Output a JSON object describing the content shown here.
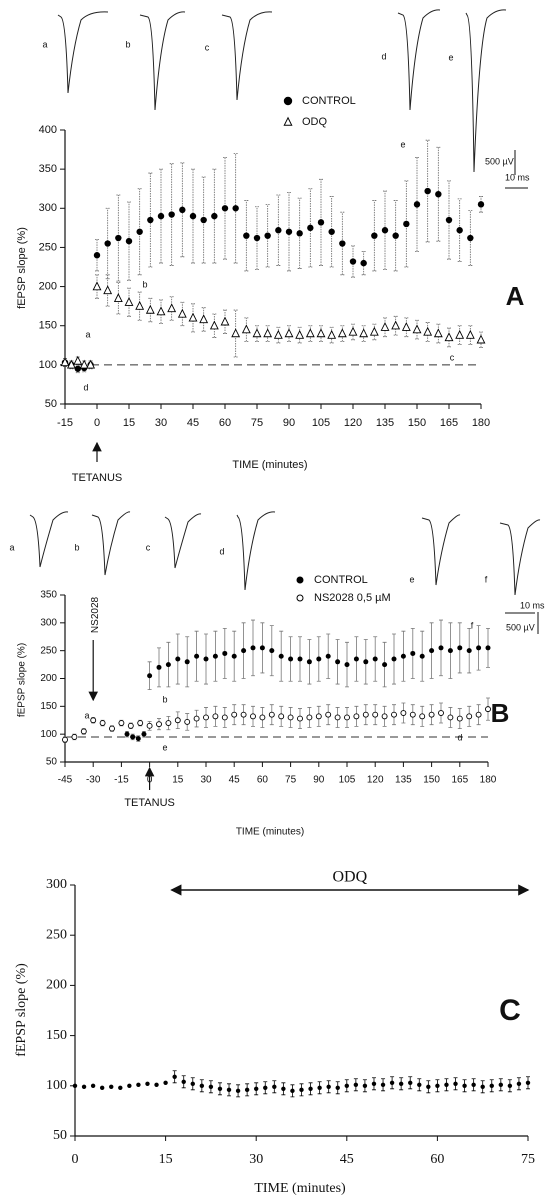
{
  "chart_data": [
    {
      "type": "line",
      "panel_label": "A",
      "xlabel": "TIME (minutes)",
      "ylabel": "fEPSP slope (%)",
      "xlim": [
        -15,
        180
      ],
      "ylim": [
        50,
        400
      ],
      "xticks": [
        -15,
        0,
        15,
        30,
        45,
        60,
        75,
        90,
        105,
        120,
        135,
        150,
        165,
        180
      ],
      "yticks": [
        50,
        100,
        150,
        200,
        250,
        300,
        350,
        400
      ],
      "reference_line": 100,
      "series": [
        {
          "name": "CONTROL",
          "color": "#000000",
          "marker": "circle",
          "x": [
            -15,
            -12,
            -9,
            -6,
            -3,
            0,
            5,
            10,
            15,
            20,
            25,
            30,
            35,
            40,
            45,
            50,
            55,
            60,
            65,
            70,
            75,
            80,
            85,
            90,
            95,
            100,
            105,
            110,
            115,
            120,
            125,
            130,
            135,
            140,
            145,
            150,
            155,
            160,
            165,
            170,
            175,
            180
          ],
          "values": [
            103,
            100,
            95,
            96,
            100,
            240,
            255,
            262,
            258,
            270,
            285,
            290,
            292,
            298,
            290,
            285,
            290,
            300,
            300,
            265,
            262,
            265,
            272,
            270,
            268,
            275,
            282,
            270,
            255,
            232,
            230,
            265,
            272,
            265,
            280,
            305,
            322,
            318,
            285,
            272,
            262,
            305
          ],
          "errors": [
            5,
            5,
            5,
            5,
            5,
            20,
            45,
            55,
            50,
            55,
            60,
            60,
            65,
            60,
            60,
            55,
            60,
            65,
            70,
            45,
            40,
            40,
            45,
            50,
            45,
            50,
            55,
            45,
            40,
            20,
            15,
            45,
            50,
            45,
            55,
            60,
            65,
            60,
            50,
            40,
            35,
            10
          ]
        },
        {
          "name": "ODQ",
          "color": "#000000",
          "marker": "triangle",
          "x": [
            -15,
            -12,
            -9,
            -6,
            -3,
            0,
            5,
            10,
            15,
            20,
            25,
            30,
            35,
            40,
            45,
            50,
            55,
            60,
            65,
            70,
            75,
            80,
            85,
            90,
            95,
            100,
            105,
            110,
            115,
            120,
            125,
            130,
            135,
            140,
            145,
            150,
            155,
            160,
            165,
            170,
            175,
            180
          ],
          "values": [
            103,
            100,
            105,
            100,
            100,
            200,
            195,
            185,
            180,
            175,
            170,
            168,
            172,
            165,
            160,
            158,
            150,
            155,
            140,
            145,
            140,
            140,
            138,
            140,
            138,
            140,
            140,
            138,
            140,
            142,
            140,
            142,
            148,
            150,
            148,
            145,
            142,
            140,
            135,
            138,
            138,
            132
          ],
          "errors": [
            5,
            5,
            5,
            5,
            5,
            15,
            20,
            20,
            18,
            18,
            15,
            15,
            15,
            15,
            18,
            15,
            15,
            15,
            30,
            15,
            10,
            10,
            10,
            10,
            10,
            10,
            10,
            10,
            10,
            10,
            10,
            10,
            12,
            12,
            12,
            12,
            12,
            12,
            12,
            12,
            12,
            10
          ]
        }
      ],
      "point_labels": [
        "a",
        "b",
        "c",
        "d",
        "e"
      ],
      "trace_labels": [
        "a",
        "b",
        "c",
        "d",
        "e"
      ],
      "scale_labels": [
        "500 µV",
        "10 ms"
      ],
      "arrows": [
        {
          "label": "TETANUS",
          "x": 0
        }
      ]
    },
    {
      "type": "line",
      "panel_label": "B",
      "xlabel": "TIME (minutes)",
      "ylabel": "fEPSP slope (%)",
      "xlim": [
        -45,
        180
      ],
      "ylim": [
        50,
        350
      ],
      "xticks": [
        -45,
        -30,
        -15,
        0,
        15,
        30,
        45,
        60,
        75,
        90,
        105,
        120,
        135,
        150,
        165,
        180
      ],
      "yticks": [
        50,
        100,
        150,
        200,
        250,
        300,
        350
      ],
      "reference_line": 95,
      "series": [
        {
          "name": "CONTROL",
          "color": "#000000",
          "marker": "circle",
          "x": [
            -12,
            -9,
            -6,
            -3,
            0,
            5,
            10,
            15,
            20,
            25,
            30,
            35,
            40,
            45,
            50,
            55,
            60,
            65,
            70,
            75,
            80,
            85,
            90,
            95,
            100,
            105,
            110,
            115,
            120,
            125,
            130,
            135,
            140,
            145,
            150,
            155,
            160,
            165,
            170,
            175,
            180
          ],
          "values": [
            100,
            95,
            92,
            100,
            205,
            220,
            225,
            235,
            230,
            240,
            235,
            240,
            245,
            240,
            250,
            255,
            255,
            250,
            240,
            235,
            235,
            230,
            235,
            240,
            230,
            225,
            235,
            230,
            235,
            225,
            235,
            240,
            245,
            240,
            250,
            255,
            250,
            255,
            250,
            255,
            255
          ],
          "errors": [
            5,
            5,
            5,
            5,
            25,
            35,
            40,
            45,
            45,
            45,
            45,
            45,
            45,
            45,
            50,
            50,
            45,
            45,
            45,
            40,
            40,
            40,
            40,
            40,
            40,
            40,
            40,
            40,
            40,
            40,
            45,
            45,
            45,
            45,
            50,
            50,
            50,
            45,
            40,
            40,
            35
          ]
        },
        {
          "name": "NS2028 0,5 µM",
          "color": "#000000",
          "marker": "open-circle",
          "x": [
            -45,
            -40,
            -35,
            -30,
            -25,
            -20,
            -15,
            -10,
            -5,
            0,
            5,
            10,
            15,
            20,
            25,
            30,
            35,
            40,
            45,
            50,
            55,
            60,
            65,
            70,
            75,
            80,
            85,
            90,
            95,
            100,
            105,
            110,
            115,
            120,
            125,
            130,
            135,
            140,
            145,
            150,
            155,
            160,
            165,
            170,
            175,
            180
          ],
          "values": [
            90,
            95,
            105,
            125,
            120,
            110,
            120,
            115,
            120,
            115,
            118,
            120,
            125,
            122,
            128,
            130,
            132,
            130,
            135,
            135,
            132,
            130,
            135,
            132,
            130,
            128,
            130,
            132,
            135,
            130,
            130,
            132,
            135,
            135,
            132,
            135,
            138,
            135,
            132,
            135,
            138,
            130,
            128,
            132,
            135,
            145
          ],
          "errors": [
            5,
            5,
            5,
            5,
            5,
            5,
            5,
            5,
            5,
            8,
            10,
            12,
            15,
            15,
            15,
            18,
            18,
            18,
            18,
            18,
            18,
            18,
            18,
            18,
            18,
            18,
            18,
            18,
            18,
            18,
            18,
            18,
            18,
            18,
            18,
            18,
            18,
            18,
            18,
            18,
            18,
            18,
            18,
            18,
            18,
            20
          ]
        }
      ],
      "point_labels": [
        "a",
        "b",
        "e",
        "d",
        "f"
      ],
      "trace_labels": [
        "a",
        "b",
        "c",
        "d",
        "e",
        "f"
      ],
      "scale_labels": [
        "10 ms",
        "500 µV"
      ],
      "arrows": [
        {
          "label": "NS2028",
          "x": -30
        },
        {
          "label": "TETANUS",
          "x": 0
        }
      ]
    },
    {
      "type": "line",
      "panel_label": "C",
      "xlabel": "TIME (minutes)",
      "ylabel": "fEPSP slope (%)",
      "xlim": [
        0,
        75
      ],
      "ylim": [
        50,
        300
      ],
      "xticks": [
        0,
        15,
        30,
        45,
        60,
        75
      ],
      "yticks": [
        50,
        100,
        150,
        200,
        250,
        300
      ],
      "series": [
        {
          "color": "#000000",
          "marker": "circle",
          "x": [
            0,
            1.5,
            3,
            4.5,
            6,
            7.5,
            9,
            10.5,
            12,
            13.5,
            15,
            16.5,
            18,
            19.5,
            21,
            22.5,
            24,
            25.5,
            27,
            28.5,
            30,
            31.5,
            33,
            34.5,
            36,
            37.5,
            39,
            40.5,
            42,
            43.5,
            45,
            46.5,
            48,
            49.5,
            51,
            52.5,
            54,
            55.5,
            57,
            58.5,
            60,
            61.5,
            63,
            64.5,
            66,
            67.5,
            69,
            70.5,
            72,
            73.5,
            75
          ],
          "values": [
            100,
            99,
            100,
            98,
            99,
            98,
            100,
            101,
            102,
            101,
            103,
            109,
            104,
            102,
            100,
            99,
            97,
            96,
            95,
            96,
            97,
            98,
            99,
            97,
            95,
            96,
            97,
            98,
            99,
            98,
            100,
            101,
            100,
            102,
            101,
            103,
            102,
            103,
            101,
            99,
            100,
            101,
            102,
            100,
            101,
            99,
            100,
            101,
            100,
            102,
            103
          ],
          "errors": [
            null,
            null,
            null,
            null,
            null,
            null,
            null,
            null,
            null,
            null,
            null,
            6,
            6,
            6,
            6,
            6,
            6,
            6,
            6,
            6,
            6,
            6,
            6,
            6,
            6,
            6,
            6,
            6,
            6,
            6,
            6,
            6,
            6,
            6,
            6,
            6,
            6,
            6,
            6,
            6,
            6,
            6,
            6,
            6,
            6,
            6,
            6,
            6,
            6,
            6,
            6
          ]
        }
      ],
      "arrows": [
        {
          "label": "ODQ",
          "x": [
            16,
            75
          ]
        }
      ]
    }
  ]
}
